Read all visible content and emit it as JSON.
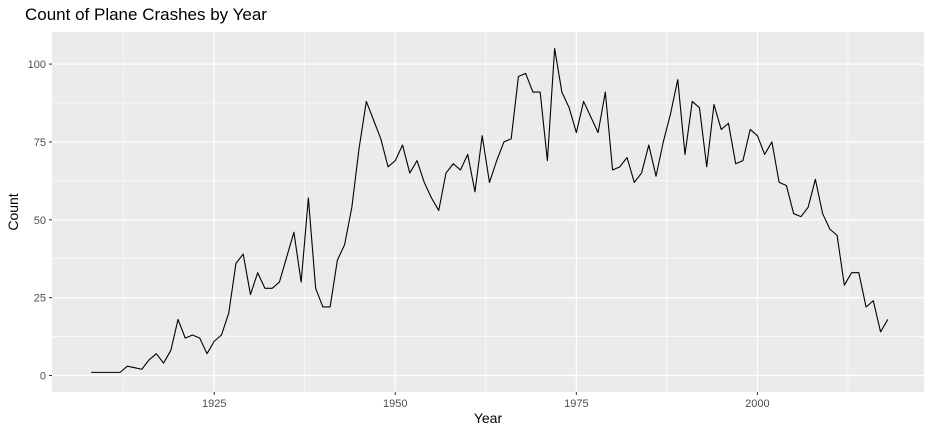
{
  "chart_data": {
    "type": "line",
    "title": "Count of Plane Crashes by Year",
    "xlabel": "Year",
    "ylabel": "Count",
    "xlim": [
      1902.6,
      2023.0
    ],
    "ylim": [
      -5.3,
      110.3
    ],
    "x_ticks": [
      1925,
      1950,
      1975,
      2000
    ],
    "x_tick_labels": [
      "1925",
      "1950",
      "1975",
      "2000"
    ],
    "y_ticks": [
      0,
      25,
      50,
      75,
      100
    ],
    "y_tick_labels": [
      "0",
      "25",
      "50",
      "75",
      "100"
    ],
    "grid": true,
    "legend": "none",
    "panel_background": "#ebebeb",
    "grid_color": "#ffffff",
    "line_color": "#000000",
    "series": [
      {
        "name": "Count",
        "x": [
          1908,
          1909,
          1910,
          1911,
          1912,
          1913,
          1914,
          1915,
          1916,
          1917,
          1918,
          1919,
          1920,
          1921,
          1922,
          1923,
          1924,
          1925,
          1926,
          1927,
          1928,
          1929,
          1930,
          1931,
          1932,
          1933,
          1934,
          1935,
          1936,
          1937,
          1938,
          1939,
          1940,
          1941,
          1942,
          1943,
          1944,
          1945,
          1946,
          1947,
          1948,
          1949,
          1950,
          1951,
          1952,
          1953,
          1954,
          1955,
          1956,
          1957,
          1958,
          1959,
          1960,
          1961,
          1962,
          1963,
          1964,
          1965,
          1966,
          1967,
          1968,
          1969,
          1970,
          1971,
          1972,
          1973,
          1974,
          1975,
          1976,
          1977,
          1978,
          1979,
          1980,
          1981,
          1982,
          1983,
          1984,
          1985,
          1986,
          1987,
          1988,
          1989,
          1990,
          1991,
          1992,
          1993,
          1994,
          1995,
          1996,
          1997,
          1998,
          1999,
          2000,
          2001,
          2002,
          2003,
          2004,
          2005,
          2006,
          2007,
          2008,
          2009,
          2010,
          2011,
          2012,
          2013,
          2014,
          2015,
          2016,
          2017,
          2018
        ],
        "values": [
          1,
          1,
          1,
          1,
          1,
          3,
          2.5,
          2,
          5,
          7,
          4,
          8,
          18,
          12,
          13,
          12,
          7,
          11,
          13,
          20,
          36,
          39,
          26,
          33,
          28,
          28,
          30,
          38,
          46,
          30,
          57,
          28,
          22,
          22,
          37,
          42,
          54,
          73,
          88,
          82,
          76,
          67,
          69,
          74,
          65,
          69,
          62,
          57,
          53,
          65,
          68,
          66,
          71,
          59,
          77,
          62,
          69,
          75,
          76,
          96,
          97,
          91,
          91,
          69,
          105,
          91,
          86,
          78,
          88,
          83,
          78,
          91,
          66,
          67,
          70,
          62,
          65,
          74,
          64,
          75,
          84,
          95,
          71,
          88,
          86,
          67,
          87,
          79,
          81,
          68,
          69,
          79,
          77,
          71,
          75,
          62,
          61,
          52,
          51,
          54,
          63,
          52,
          47,
          45,
          29,
          33,
          33,
          22,
          24,
          14,
          18
        ]
      }
    ]
  }
}
